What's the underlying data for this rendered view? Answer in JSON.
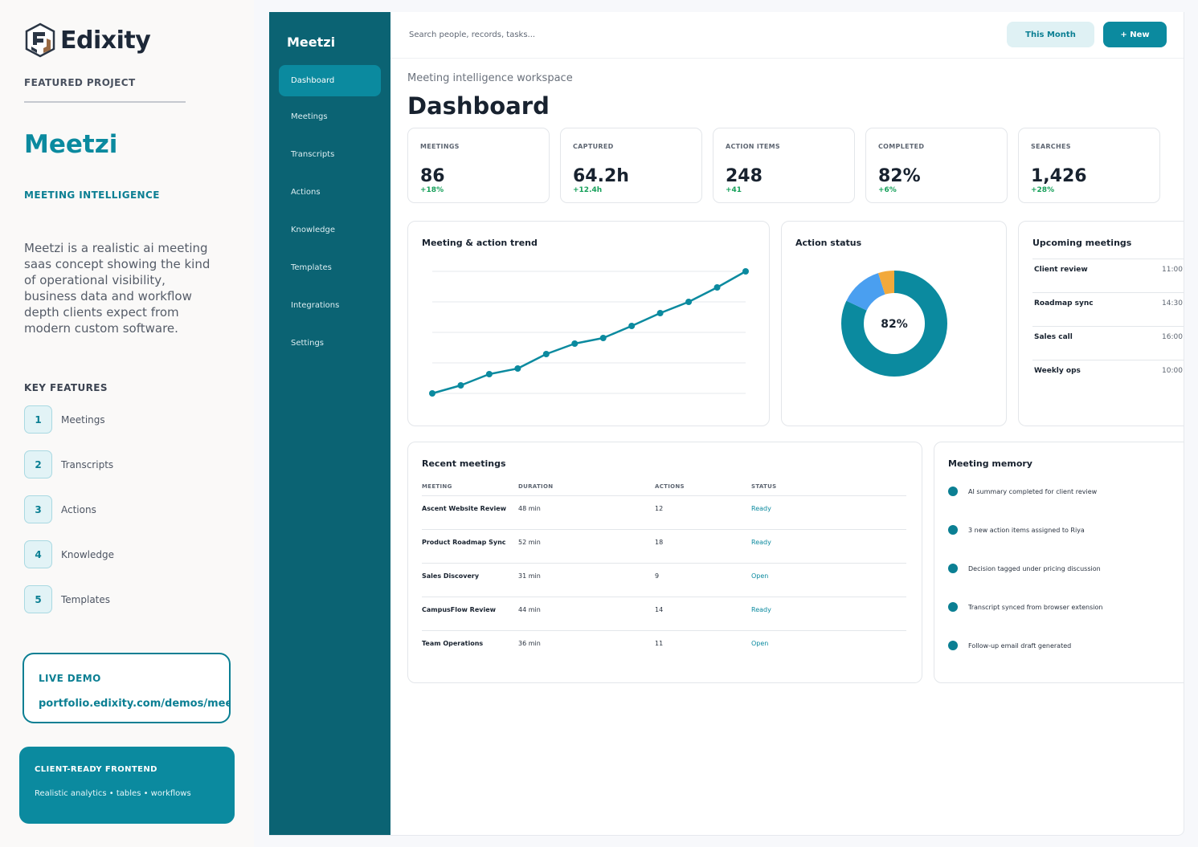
{
  "brand": {
    "name": "Edixity"
  },
  "project": {
    "featured_label": "FEATURED PROJECT",
    "name": "Meetzi",
    "subtitle": "MEETING INTELLIGENCE",
    "description": "Meetzi is a realistic ai meeting saas concept showing the kind of operational visibility, business data and workflow depth clients expect from modern custom software.",
    "features_title": "KEY FEATURES",
    "features": [
      {
        "num": "1",
        "label": "Meetings"
      },
      {
        "num": "2",
        "label": "Transcripts"
      },
      {
        "num": "3",
        "label": "Actions"
      },
      {
        "num": "4",
        "label": "Knowledge"
      },
      {
        "num": "5",
        "label": "Templates"
      }
    ],
    "live_demo": {
      "title": "LIVE DEMO",
      "url": "portfolio.edixity.com/demos/meetzi"
    },
    "client_ready": {
      "title": "CLIENT-READY FRONTEND",
      "subtitle": "Realistic analytics • tables • workflows"
    }
  },
  "app": {
    "brand": "Meetzi",
    "nav": [
      {
        "label": "Dashboard",
        "active": true
      },
      {
        "label": "Meetings"
      },
      {
        "label": "Transcripts"
      },
      {
        "label": "Actions"
      },
      {
        "label": "Knowledge"
      },
      {
        "label": "Templates"
      },
      {
        "label": "Integrations"
      },
      {
        "label": "Settings"
      }
    ],
    "search_placeholder": "Search people, records, tasks...",
    "btn_month": "This Month",
    "btn_new": "+ New",
    "breadcrumb": "Meeting intelligence workspace",
    "title": "Dashboard",
    "kpis": [
      {
        "label": "MEETINGS",
        "value": "86",
        "delta": "+18%"
      },
      {
        "label": "CAPTURED",
        "value": "64.2h",
        "delta": "+12.4h"
      },
      {
        "label": "ACTION ITEMS",
        "value": "248",
        "delta": "+41"
      },
      {
        "label": "COMPLETED",
        "value": "82%",
        "delta": "+6%"
      },
      {
        "label": "SEARCHES",
        "value": "1,426",
        "delta": "+28%"
      }
    ],
    "trend_title": "Meeting & action trend",
    "status_title": "Action status",
    "status_center": "82%",
    "upcoming_title": "Upcoming meetings",
    "upcoming": [
      {
        "name": "Client review",
        "time": "11:00"
      },
      {
        "name": "Roadmap sync",
        "time": "14:30"
      },
      {
        "name": "Sales call",
        "time": "16:00"
      },
      {
        "name": "Weekly ops",
        "time": "10:00"
      }
    ],
    "recent_title": "Recent meetings",
    "recent_headers": [
      "MEETING",
      "DURATION",
      "ACTIONS",
      "STATUS"
    ],
    "recent": [
      {
        "name": "Ascent Website Review",
        "duration": "48 min",
        "actions": "12",
        "status": "Ready"
      },
      {
        "name": "Product Roadmap Sync",
        "duration": "52 min",
        "actions": "18",
        "status": "Ready"
      },
      {
        "name": "Sales Discovery",
        "duration": "31 min",
        "actions": "9",
        "status": "Open"
      },
      {
        "name": "CampusFlow Review",
        "duration": "44 min",
        "actions": "14",
        "status": "Ready"
      },
      {
        "name": "Team Operations",
        "duration": "36 min",
        "actions": "11",
        "status": "Open"
      }
    ],
    "memory_title": "Meeting memory",
    "memory": [
      "AI summary completed for client review",
      "3 new action items assigned to Riya",
      "Decision tagged under pricing discussion",
      "Transcript synced from browser extension",
      "Follow-up email draft generated"
    ]
  },
  "colors": {
    "accent": "#0b8a9f",
    "sidebar": "#0b6373",
    "positive": "#16a05a",
    "donut_blue": "#4a9ff0",
    "donut_amber": "#f2a93b"
  },
  "chart_data": [
    {
      "type": "line",
      "title": "Meeting & action trend",
      "x": [
        1,
        2,
        3,
        4,
        5,
        6,
        7,
        8,
        9,
        10,
        11,
        12
      ],
      "series": [
        {
          "values": [
            0,
            10,
            24,
            31,
            49,
            62,
            69,
            84,
            100,
            114,
            132,
            152
          ]
        }
      ],
      "ylim": [
        0,
        152
      ],
      "grid": true
    },
    {
      "type": "pie",
      "title": "Action status",
      "center_label": "82%",
      "slices": [
        {
          "value": 82,
          "color": "#0b8a9f"
        },
        {
          "value": 13,
          "color": "#4a9ff0"
        },
        {
          "value": 5,
          "color": "#f2a93b"
        }
      ]
    }
  ]
}
